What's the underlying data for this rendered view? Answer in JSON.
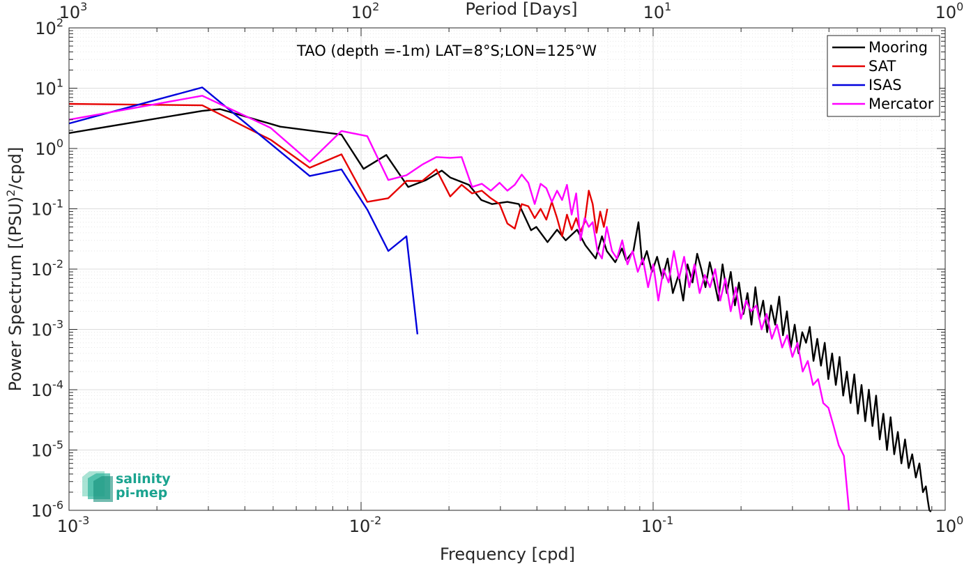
{
  "chart_data": {
    "type": "line",
    "title": "TAO (depth =-1m) LAT=8°S;LON=125°W",
    "xlabel": "Frequency [cpd]",
    "ylabel": "Power Spectrum [(PSU)²/cpd]",
    "ylabel_parts": {
      "before": "Power Spectrum [(PSU)",
      "sup": "2",
      "after": "/cpd]"
    },
    "top_xlabel": "Period [Days]",
    "x_scale": "log",
    "y_scale": "log",
    "xlim": [
      0.001,
      1
    ],
    "ylim": [
      1e-06,
      100
    ],
    "grid": true,
    "legend_position": "top-right",
    "x_ticks": [
      {
        "base": "10",
        "exp": "-3"
      },
      {
        "base": "10",
        "exp": "-2"
      },
      {
        "base": "10",
        "exp": "-1"
      },
      {
        "base": "10",
        "exp": "0"
      }
    ],
    "top_ticks": [
      {
        "base": "10",
        "exp": "3"
      },
      {
        "base": "10",
        "exp": "2"
      },
      {
        "base": "10",
        "exp": "1"
      },
      {
        "base": "10",
        "exp": "0"
      }
    ],
    "y_ticks": [
      {
        "base": "10",
        "exp": "-6"
      },
      {
        "base": "10",
        "exp": "-5"
      },
      {
        "base": "10",
        "exp": "-4"
      },
      {
        "base": "10",
        "exp": "-3"
      },
      {
        "base": "10",
        "exp": "-2"
      },
      {
        "base": "10",
        "exp": "-1"
      },
      {
        "base": "10",
        "exp": "0"
      },
      {
        "base": "10",
        "exp": "1"
      },
      {
        "base": "10",
        "exp": "2"
      }
    ],
    "series": [
      {
        "name": "Mooring",
        "color": "#000000",
        "x": [
          0.001,
          0.00286,
          0.00329,
          0.00529,
          0.00529,
          0.00857,
          0.0102,
          0.0122,
          0.0145,
          0.0167,
          0.0189,
          0.0202,
          0.0234,
          0.0258,
          0.0281,
          0.0317,
          0.0347,
          0.0382,
          0.0398,
          0.0435,
          0.0469,
          0.0502,
          0.0549,
          0.0586,
          0.0636,
          0.0668,
          0.0694,
          0.0742,
          0.0782,
          0.0808,
          0.0856,
          0.0891,
          0.0918,
          0.0952,
          0.0991,
          0.1032,
          0.1076,
          0.1121,
          0.1168,
          0.1222,
          0.1268,
          0.1311,
          0.1364,
          0.1415,
          0.1462,
          0.1511,
          0.1563,
          0.1611,
          0.1672,
          0.1729,
          0.1788,
          0.1844,
          0.1906,
          0.1967,
          0.2039,
          0.2105,
          0.2172,
          0.2239,
          0.2307,
          0.2382,
          0.2457,
          0.2534,
          0.2617,
          0.2703,
          0.2784,
          0.2872,
          0.2961,
          0.3053,
          0.3148,
          0.3241,
          0.3339,
          0.3438,
          0.3542,
          0.3648,
          0.3756,
          0.3869,
          0.3982,
          0.4101,
          0.4223,
          0.4349,
          0.4476,
          0.4608,
          0.4745,
          0.4884,
          0.5026,
          0.5172,
          0.5324,
          0.5479,
          0.5638,
          0.5802,
          0.5969,
          0.6142,
          0.6319,
          0.6502,
          0.6691,
          0.6884,
          0.7082,
          0.7286,
          0.7496,
          0.7712,
          0.7934,
          0.8161,
          0.8393,
          0.8589,
          0.8712,
          0.8828,
          0.8947
        ],
        "y": [
          1.8,
          4.2,
          4.5,
          2.3,
          2.3,
          1.7,
          0.46,
          0.78,
          0.23,
          0.3,
          0.43,
          0.33,
          0.25,
          0.14,
          0.12,
          0.13,
          0.12,
          0.044,
          0.05,
          0.028,
          0.045,
          0.03,
          0.045,
          0.025,
          0.015,
          0.035,
          0.02,
          0.013,
          0.022,
          0.014,
          0.02,
          0.06,
          0.012,
          0.02,
          0.009,
          0.016,
          0.007,
          0.015,
          0.004,
          0.008,
          0.003,
          0.012,
          0.006,
          0.018,
          0.01,
          0.005,
          0.013,
          0.007,
          0.003,
          0.012,
          0.004,
          0.009,
          0.0025,
          0.006,
          0.0018,
          0.004,
          0.0012,
          0.005,
          0.0015,
          0.003,
          0.0009,
          0.0025,
          0.0012,
          0.0035,
          0.0008,
          0.002,
          0.0005,
          0.0012,
          0.0004,
          0.0009,
          0.0006,
          0.0011,
          0.0003,
          0.0007,
          0.00025,
          0.0006,
          0.00015,
          0.0004,
          0.00012,
          0.00035,
          8e-05,
          0.0002,
          6e-05,
          0.00018,
          4e-05,
          0.00012,
          3e-05,
          0.0001,
          2.5e-05,
          8e-05,
          1.5e-05,
          4e-05,
          1e-05,
          3.5e-05,
          8.5e-06,
          2e-05,
          6e-06,
          1.5e-05,
          5e-06,
          8.5e-06,
          3.5e-06,
          6e-06,
          2e-06,
          2.5e-06,
          1.5e-06,
          1e-06,
          9.5e-07
        ]
      },
      {
        "name": "SAT",
        "color": "#e60000",
        "x": [
          0.001,
          0.00286,
          0.0049,
          0.00667,
          0.00857,
          0.0105,
          0.0124,
          0.0143,
          0.0162,
          0.0181,
          0.0202,
          0.0221,
          0.024,
          0.0259,
          0.0278,
          0.0298,
          0.0317,
          0.0336,
          0.0355,
          0.0374,
          0.0393,
          0.0412,
          0.0431,
          0.045,
          0.0469,
          0.0488,
          0.0507,
          0.0526,
          0.0545,
          0.0564,
          0.0583,
          0.0602,
          0.0621,
          0.064,
          0.0659,
          0.0678,
          0.0697
        ],
        "y": [
          5.5,
          5.2,
          1.4,
          0.48,
          0.8,
          0.13,
          0.15,
          0.29,
          0.29,
          0.45,
          0.16,
          0.25,
          0.18,
          0.2,
          0.15,
          0.12,
          0.057,
          0.047,
          0.12,
          0.11,
          0.07,
          0.1,
          0.066,
          0.13,
          0.07,
          0.035,
          0.08,
          0.045,
          0.07,
          0.042,
          0.06,
          0.2,
          0.12,
          0.04,
          0.09,
          0.05,
          0.1
        ]
      },
      {
        "name": "ISAS",
        "color": "#0000dd",
        "x": [
          0.001,
          0.00286,
          0.00667,
          0.00857,
          0.0105,
          0.0124,
          0.0143,
          0.0156
        ],
        "y": [
          2.6,
          10.3,
          0.35,
          0.45,
          0.097,
          0.02,
          0.035,
          0.00083
        ]
      },
      {
        "name": "Mercator",
        "color": "#ff00ff",
        "x": [
          0.001,
          0.00286,
          0.0049,
          0.00667,
          0.00857,
          0.0105,
          0.0124,
          0.0143,
          0.0162,
          0.0181,
          0.0202,
          0.0221,
          0.024,
          0.0259,
          0.0278,
          0.0298,
          0.0317,
          0.0336,
          0.0355,
          0.0374,
          0.0393,
          0.0412,
          0.0431,
          0.045,
          0.0469,
          0.0488,
          0.0507,
          0.0526,
          0.0545,
          0.0564,
          0.0583,
          0.0602,
          0.0621,
          0.0645,
          0.0668,
          0.0694,
          0.0723,
          0.0752,
          0.0784,
          0.0817,
          0.0851,
          0.0886,
          0.0922,
          0.0961,
          0.1001,
          0.1042,
          0.1085,
          0.113,
          0.1178,
          0.1227,
          0.1277,
          0.133,
          0.1386,
          0.1443,
          0.1503,
          0.1566,
          0.1631,
          0.1698,
          0.1768,
          0.1843,
          0.1919,
          0.1998,
          0.2081,
          0.2167,
          0.2258,
          0.2351,
          0.2448,
          0.2549,
          0.2655,
          0.2765,
          0.2879,
          0.2998,
          0.3123,
          0.3252,
          0.3386,
          0.3527,
          0.3673,
          0.3825,
          0.3983,
          0.4148,
          0.432,
          0.4499,
          0.4684
        ],
        "y": [
          3.0,
          7.5,
          2.2,
          0.6,
          1.95,
          1.6,
          0.3,
          0.36,
          0.54,
          0.72,
          0.7,
          0.72,
          0.23,
          0.26,
          0.2,
          0.27,
          0.2,
          0.25,
          0.37,
          0.27,
          0.12,
          0.26,
          0.22,
          0.13,
          0.2,
          0.14,
          0.25,
          0.08,
          0.18,
          0.03,
          0.07,
          0.05,
          0.06,
          0.02,
          0.015,
          0.05,
          0.02,
          0.015,
          0.03,
          0.012,
          0.02,
          0.009,
          0.015,
          0.005,
          0.012,
          0.003,
          0.01,
          0.006,
          0.02,
          0.007,
          0.016,
          0.005,
          0.012,
          0.004,
          0.008,
          0.005,
          0.01,
          0.003,
          0.007,
          0.002,
          0.005,
          0.0015,
          0.003,
          0.002,
          0.0025,
          0.001,
          0.0018,
          0.0007,
          0.0012,
          0.0005,
          0.0008,
          0.00035,
          0.0006,
          0.0002,
          0.0003,
          0.00012,
          0.00015,
          6e-05,
          5e-05,
          2.5e-05,
          1.2e-05,
          8e-06,
          1e-06
        ]
      }
    ]
  },
  "logo": {
    "line1": "salinity",
    "line2": "pi-mep",
    "color": "#1aa38f"
  }
}
